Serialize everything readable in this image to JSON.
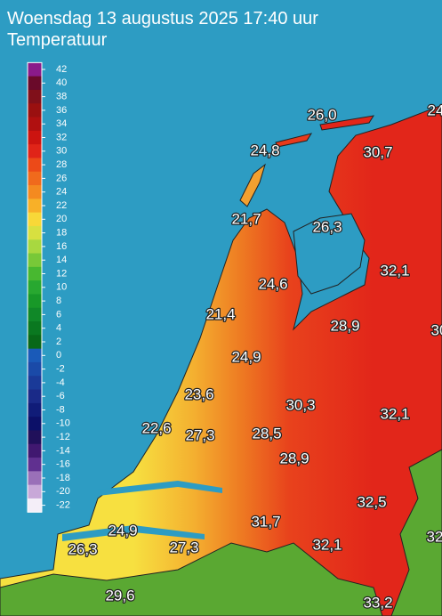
{
  "header": {
    "title": "Woensdag 13 augustus 2025 17:40 uur",
    "subtitle": "Temperatuur"
  },
  "legend": {
    "labels": [
      "42",
      "40",
      "38",
      "36",
      "34",
      "32",
      "30",
      "28",
      "26",
      "24",
      "22",
      "20",
      "18",
      "16",
      "14",
      "12",
      "10",
      "8",
      "6",
      "4",
      "2",
      "0",
      "-2",
      "-4",
      "-6",
      "-8",
      "-10",
      "-12",
      "-14",
      "-16",
      "-18",
      "-20",
      "-22"
    ]
  },
  "stations": [
    "26,0",
    "24",
    "24,8",
    "30,7",
    "21,7",
    "26,3",
    "32,1",
    "24,6",
    "21,4",
    "28,9",
    "30",
    "24,9",
    "23,6",
    "30,3",
    "32,1",
    "22,6",
    "27,3",
    "28,5",
    "28,9",
    "32,5",
    "24,9",
    "31,7",
    "32",
    "26,3",
    "27,3",
    "32,1",
    "29,6",
    "33,2"
  ]
}
